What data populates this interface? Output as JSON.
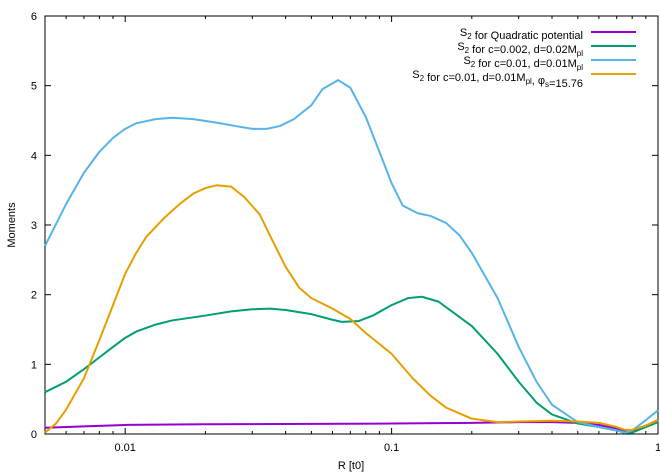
{
  "chart_data": {
    "type": "line",
    "xlabel": "R [t0]",
    "ylabel": "Moments",
    "xscale": "log",
    "xlim": [
      0.005,
      1
    ],
    "ylim": [
      0,
      6
    ],
    "grid": false,
    "legend_position": "top-right",
    "x_ticks": [
      {
        "value": 0.01,
        "label": "0.01"
      },
      {
        "value": 0.1,
        "label": "0.1"
      },
      {
        "value": 1,
        "label": "1"
      }
    ],
    "y_ticks": [
      {
        "value": 0,
        "label": "0"
      },
      {
        "value": 1,
        "label": "1"
      },
      {
        "value": 2,
        "label": "2"
      },
      {
        "value": 3,
        "label": "3"
      },
      {
        "value": 4,
        "label": "4"
      },
      {
        "value": 5,
        "label": "5"
      },
      {
        "value": 6,
        "label": "6"
      }
    ],
    "series": [
      {
        "legend_parts": [
          [
            "S",
            ""
          ],
          [
            "2",
            "sub"
          ],
          [
            " for Quadratic potential",
            ""
          ]
        ],
        "color": "#9400d3",
        "points": [
          [
            0.005,
            0.09
          ],
          [
            0.007,
            0.11
          ],
          [
            0.01,
            0.13
          ],
          [
            0.02,
            0.14
          ],
          [
            0.05,
            0.145
          ],
          [
            0.1,
            0.15
          ],
          [
            0.2,
            0.16
          ],
          [
            0.3,
            0.17
          ],
          [
            0.4,
            0.17
          ],
          [
            0.5,
            0.16
          ],
          [
            0.6,
            0.13
          ],
          [
            0.7,
            0.08
          ],
          [
            0.75,
            0.05
          ],
          [
            0.8,
            0.05
          ],
          [
            0.9,
            0.12
          ],
          [
            1.0,
            0.2
          ]
        ]
      },
      {
        "legend_parts": [
          [
            "S",
            ""
          ],
          [
            "2",
            "sub"
          ],
          [
            " for c=0.002, d=0.02M",
            ""
          ],
          [
            "pl",
            "sub"
          ]
        ],
        "color": "#009e73",
        "points": [
          [
            0.005,
            0.6
          ],
          [
            0.006,
            0.75
          ],
          [
            0.007,
            0.93
          ],
          [
            0.008,
            1.1
          ],
          [
            0.009,
            1.25
          ],
          [
            0.01,
            1.38
          ],
          [
            0.011,
            1.47
          ],
          [
            0.013,
            1.57
          ],
          [
            0.015,
            1.63
          ],
          [
            0.02,
            1.7
          ],
          [
            0.025,
            1.76
          ],
          [
            0.03,
            1.79
          ],
          [
            0.035,
            1.8
          ],
          [
            0.04,
            1.78
          ],
          [
            0.05,
            1.72
          ],
          [
            0.06,
            1.64
          ],
          [
            0.065,
            1.61
          ],
          [
            0.075,
            1.62
          ],
          [
            0.085,
            1.7
          ],
          [
            0.1,
            1.85
          ],
          [
            0.115,
            1.95
          ],
          [
            0.13,
            1.97
          ],
          [
            0.15,
            1.9
          ],
          [
            0.2,
            1.55
          ],
          [
            0.25,
            1.15
          ],
          [
            0.3,
            0.75
          ],
          [
            0.35,
            0.45
          ],
          [
            0.4,
            0.28
          ],
          [
            0.5,
            0.15
          ],
          [
            0.6,
            0.1
          ],
          [
            0.7,
            0.05
          ],
          [
            0.75,
            0.02
          ],
          [
            0.8,
            0.02
          ],
          [
            0.9,
            0.1
          ],
          [
            1.0,
            0.17
          ]
        ]
      },
      {
        "legend_parts": [
          [
            "S",
            ""
          ],
          [
            "2",
            "sub"
          ],
          [
            " for c=0.01, d=0.01M",
            ""
          ],
          [
            "pl",
            "sub"
          ]
        ],
        "color": "#56b4e9",
        "points": [
          [
            0.005,
            2.7
          ],
          [
            0.006,
            3.3
          ],
          [
            0.007,
            3.75
          ],
          [
            0.008,
            4.05
          ],
          [
            0.009,
            4.25
          ],
          [
            0.01,
            4.38
          ],
          [
            0.011,
            4.46
          ],
          [
            0.013,
            4.52
          ],
          [
            0.015,
            4.54
          ],
          [
            0.018,
            4.52
          ],
          [
            0.022,
            4.47
          ],
          [
            0.026,
            4.42
          ],
          [
            0.03,
            4.38
          ],
          [
            0.034,
            4.38
          ],
          [
            0.038,
            4.42
          ],
          [
            0.043,
            4.52
          ],
          [
            0.05,
            4.72
          ],
          [
            0.055,
            4.95
          ],
          [
            0.063,
            5.08
          ],
          [
            0.07,
            4.97
          ],
          [
            0.08,
            4.55
          ],
          [
            0.09,
            4.05
          ],
          [
            0.1,
            3.6
          ],
          [
            0.11,
            3.28
          ],
          [
            0.125,
            3.17
          ],
          [
            0.14,
            3.13
          ],
          [
            0.16,
            3.03
          ],
          [
            0.18,
            2.85
          ],
          [
            0.2,
            2.6
          ],
          [
            0.25,
            1.95
          ],
          [
            0.3,
            1.25
          ],
          [
            0.35,
            0.75
          ],
          [
            0.4,
            0.42
          ],
          [
            0.5,
            0.17
          ],
          [
            0.6,
            0.1
          ],
          [
            0.7,
            0.05
          ],
          [
            0.75,
            0.02
          ],
          [
            0.8,
            0.05
          ],
          [
            0.9,
            0.2
          ],
          [
            1.0,
            0.34
          ]
        ]
      },
      {
        "legend_parts": [
          [
            "S",
            ""
          ],
          [
            "2",
            "sub"
          ],
          [
            " for c=0.01, d=0.01M",
            ""
          ],
          [
            "pl",
            "sub"
          ],
          [
            ", φ",
            ""
          ],
          [
            "s",
            "sub"
          ],
          [
            "=15.76",
            ""
          ]
        ],
        "color": "#e69f00",
        "points": [
          [
            0.005,
            0.02
          ],
          [
            0.0055,
            0.15
          ],
          [
            0.006,
            0.35
          ],
          [
            0.007,
            0.8
          ],
          [
            0.008,
            1.35
          ],
          [
            0.009,
            1.85
          ],
          [
            0.01,
            2.3
          ],
          [
            0.011,
            2.6
          ],
          [
            0.012,
            2.83
          ],
          [
            0.014,
            3.1
          ],
          [
            0.016,
            3.3
          ],
          [
            0.018,
            3.45
          ],
          [
            0.02,
            3.53
          ],
          [
            0.022,
            3.57
          ],
          [
            0.025,
            3.55
          ],
          [
            0.028,
            3.4
          ],
          [
            0.032,
            3.15
          ],
          [
            0.036,
            2.75
          ],
          [
            0.04,
            2.4
          ],
          [
            0.045,
            2.1
          ],
          [
            0.05,
            1.95
          ],
          [
            0.06,
            1.8
          ],
          [
            0.07,
            1.65
          ],
          [
            0.08,
            1.45
          ],
          [
            0.1,
            1.15
          ],
          [
            0.12,
            0.8
          ],
          [
            0.14,
            0.55
          ],
          [
            0.16,
            0.38
          ],
          [
            0.2,
            0.22
          ],
          [
            0.25,
            0.17
          ],
          [
            0.3,
            0.18
          ],
          [
            0.4,
            0.19
          ],
          [
            0.5,
            0.18
          ],
          [
            0.6,
            0.16
          ],
          [
            0.7,
            0.1
          ],
          [
            0.75,
            0.06
          ],
          [
            0.8,
            0.06
          ],
          [
            0.9,
            0.12
          ],
          [
            1.0,
            0.2
          ]
        ]
      }
    ]
  }
}
